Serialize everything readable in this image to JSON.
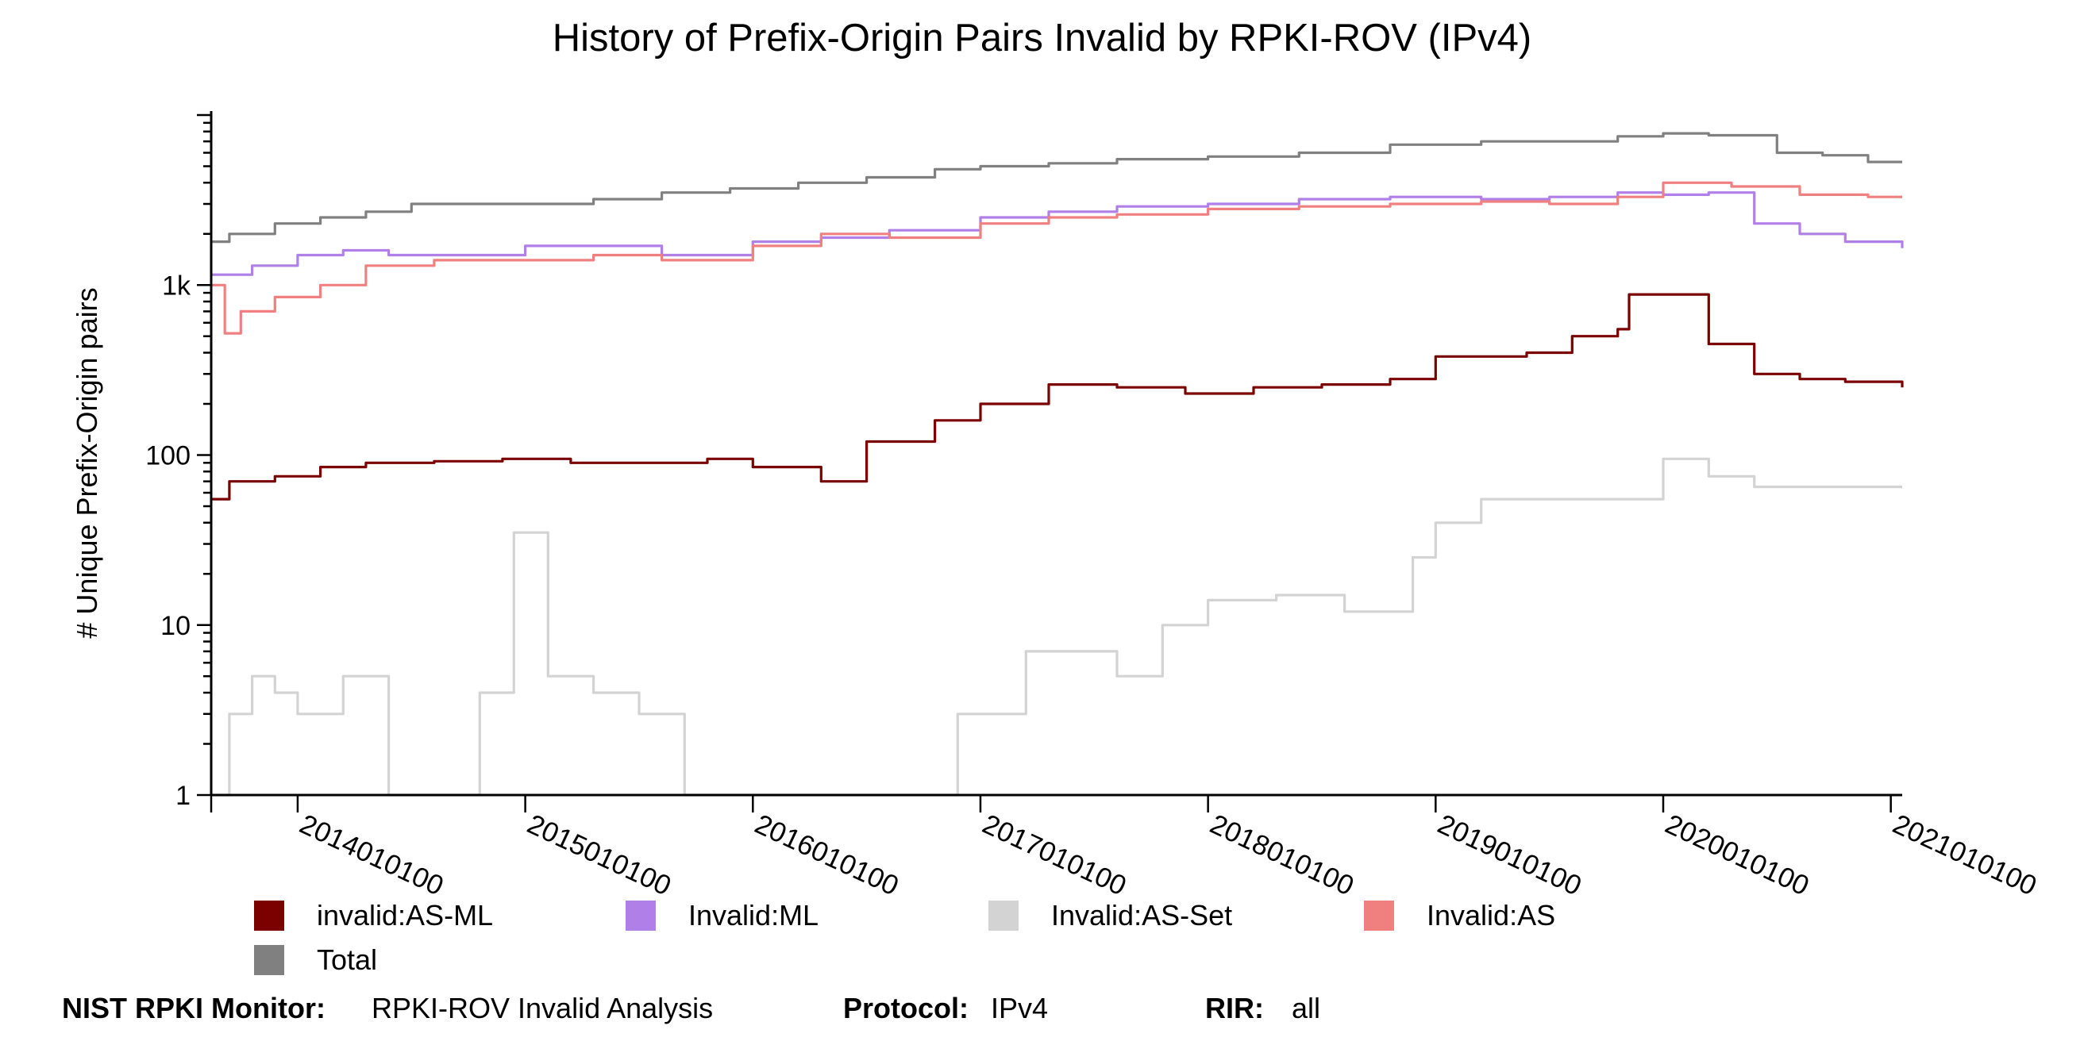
{
  "chart_data": {
    "type": "line",
    "title": "History of Prefix-Origin Pairs Invalid by RPKI-ROV (IPv4)",
    "ylabel": "# Unique Prefix-Origin pairs",
    "xlabel": "",
    "yscale": "log",
    "ylim": [
      1,
      10000
    ],
    "xlim": [
      2013.62,
      2021.05
    ],
    "y_ticks": [
      {
        "value": 1,
        "label": "1"
      },
      {
        "value": 10,
        "label": "10"
      },
      {
        "value": 100,
        "label": "100"
      },
      {
        "value": 1000,
        "label": "1k"
      }
    ],
    "x_ticks": [
      {
        "value": 2014.0,
        "label": "2014010100"
      },
      {
        "value": 2015.0,
        "label": "2015010100"
      },
      {
        "value": 2016.0,
        "label": "2016010100"
      },
      {
        "value": 2017.0,
        "label": "2017010100"
      },
      {
        "value": 2018.0,
        "label": "2018010100"
      },
      {
        "value": 2019.0,
        "label": "2019010100"
      },
      {
        "value": 2020.0,
        "label": "2020010100"
      },
      {
        "value": 2021.0,
        "label": "2021010100"
      }
    ],
    "grid": false,
    "legend_position": "bottom",
    "series": [
      {
        "name": "Total",
        "color": "#808080",
        "x": [
          2013.62,
          2013.7,
          2013.9,
          2014.1,
          2014.3,
          2014.5,
          2014.7,
          2015.0,
          2015.3,
          2015.6,
          2015.9,
          2016.2,
          2016.5,
          2016.8,
          2017.0,
          2017.3,
          2017.6,
          2018.0,
          2018.4,
          2018.8,
          2019.2,
          2019.5,
          2019.8,
          2020.0,
          2020.2,
          2020.5,
          2020.7,
          2020.9,
          2021.05
        ],
        "y": [
          1800,
          2000,
          2300,
          2500,
          2700,
          3000,
          3000,
          3000,
          3200,
          3500,
          3700,
          4000,
          4300,
          4800,
          5000,
          5200,
          5500,
          5700,
          6000,
          6700,
          7000,
          7000,
          7500,
          7800,
          7600,
          6000,
          5800,
          5300,
          5300
        ]
      },
      {
        "name": "Invalid:ML",
        "color": "#b07fe8",
        "x": [
          2013.62,
          2013.8,
          2014.0,
          2014.2,
          2014.4,
          2014.7,
          2015.0,
          2015.3,
          2015.6,
          2016.0,
          2016.3,
          2016.6,
          2017.0,
          2017.3,
          2017.6,
          2018.0,
          2018.4,
          2018.8,
          2019.2,
          2019.5,
          2019.8,
          2020.0,
          2020.2,
          2020.4,
          2020.6,
          2020.8,
          2021.05
        ],
        "y": [
          1150,
          1300,
          1500,
          1600,
          1500,
          1500,
          1700,
          1700,
          1500,
          1800,
          1900,
          2100,
          2500,
          2700,
          2900,
          3000,
          3200,
          3300,
          3200,
          3300,
          3500,
          3400,
          3500,
          2300,
          2000,
          1800,
          1650
        ]
      },
      {
        "name": "Invalid:AS",
        "color": "#f08080",
        "x": [
          2013.62,
          2013.68,
          2013.75,
          2013.9,
          2014.1,
          2014.3,
          2014.6,
          2015.0,
          2015.3,
          2015.6,
          2016.0,
          2016.3,
          2016.6,
          2017.0,
          2017.3,
          2017.6,
          2018.0,
          2018.4,
          2018.8,
          2019.2,
          2019.5,
          2019.8,
          2020.0,
          2020.3,
          2020.6,
          2020.9,
          2021.05
        ],
        "y": [
          1000,
          520,
          700,
          850,
          1000,
          1300,
          1400,
          1400,
          1500,
          1400,
          1700,
          2000,
          1900,
          2300,
          2500,
          2600,
          2800,
          2900,
          3000,
          3100,
          3000,
          3300,
          4000,
          3800,
          3400,
          3300,
          3300
        ]
      },
      {
        "name": "invalid:AS-ML",
        "color": "#7b0000",
        "x": [
          2013.62,
          2013.7,
          2013.9,
          2014.1,
          2014.3,
          2014.6,
          2014.9,
          2015.2,
          2015.5,
          2015.8,
          2016.0,
          2016.3,
          2016.5,
          2016.8,
          2017.0,
          2017.3,
          2017.6,
          2017.9,
          2018.2,
          2018.5,
          2018.8,
          2019.0,
          2019.2,
          2019.4,
          2019.6,
          2019.8,
          2019.85,
          2020.1,
          2020.2,
          2020.4,
          2020.6,
          2020.8,
          2021.05
        ],
        "y": [
          55,
          70,
          75,
          85,
          90,
          92,
          95,
          90,
          90,
          95,
          85,
          70,
          120,
          160,
          200,
          260,
          250,
          230,
          250,
          260,
          280,
          380,
          380,
          400,
          500,
          550,
          880,
          880,
          450,
          300,
          280,
          270,
          250
        ]
      },
      {
        "name": "Invalid:AS-Set",
        "color": "#d3d3d3",
        "x": [
          2013.62,
          2013.7,
          2013.8,
          2013.9,
          2014.0,
          2014.2,
          2014.4,
          2014.6,
          2014.8,
          2014.95,
          2015.1,
          2015.3,
          2015.5,
          2015.7,
          2016.0,
          2016.3,
          2016.5,
          2016.7,
          2016.9,
          2017.0,
          2017.2,
          2017.4,
          2017.6,
          2017.8,
          2018.0,
          2018.3,
          2018.6,
          2018.9,
          2019.0,
          2019.2,
          2019.5,
          2019.8,
          2020.0,
          2020.2,
          2020.4,
          2020.6,
          2020.8,
          2021.05
        ],
        "y": [
          1,
          3,
          5,
          4,
          3,
          5,
          1,
          1,
          4,
          35,
          5,
          4,
          3,
          1,
          1,
          1,
          1,
          1,
          3,
          3,
          7,
          7,
          5,
          10,
          14,
          15,
          12,
          25,
          40,
          55,
          55,
          55,
          95,
          75,
          65,
          65,
          65,
          65
        ]
      }
    ]
  },
  "legend": {
    "items": [
      {
        "label": "invalid:AS-ML",
        "color": "#7b0000"
      },
      {
        "label": "Invalid:ML",
        "color": "#b07fe8"
      },
      {
        "label": "Invalid:AS-Set",
        "color": "#d3d3d3"
      },
      {
        "label": "Invalid:AS",
        "color": "#f08080"
      },
      {
        "label": "Total",
        "color": "#808080"
      }
    ]
  },
  "footer": {
    "monitor_label": "NIST RPKI Monitor:",
    "monitor_value": "RPKI-ROV Invalid Analysis",
    "protocol_label": "Protocol:",
    "protocol_value": "IPv4",
    "rir_label": "RIR:",
    "rir_value": "all"
  }
}
